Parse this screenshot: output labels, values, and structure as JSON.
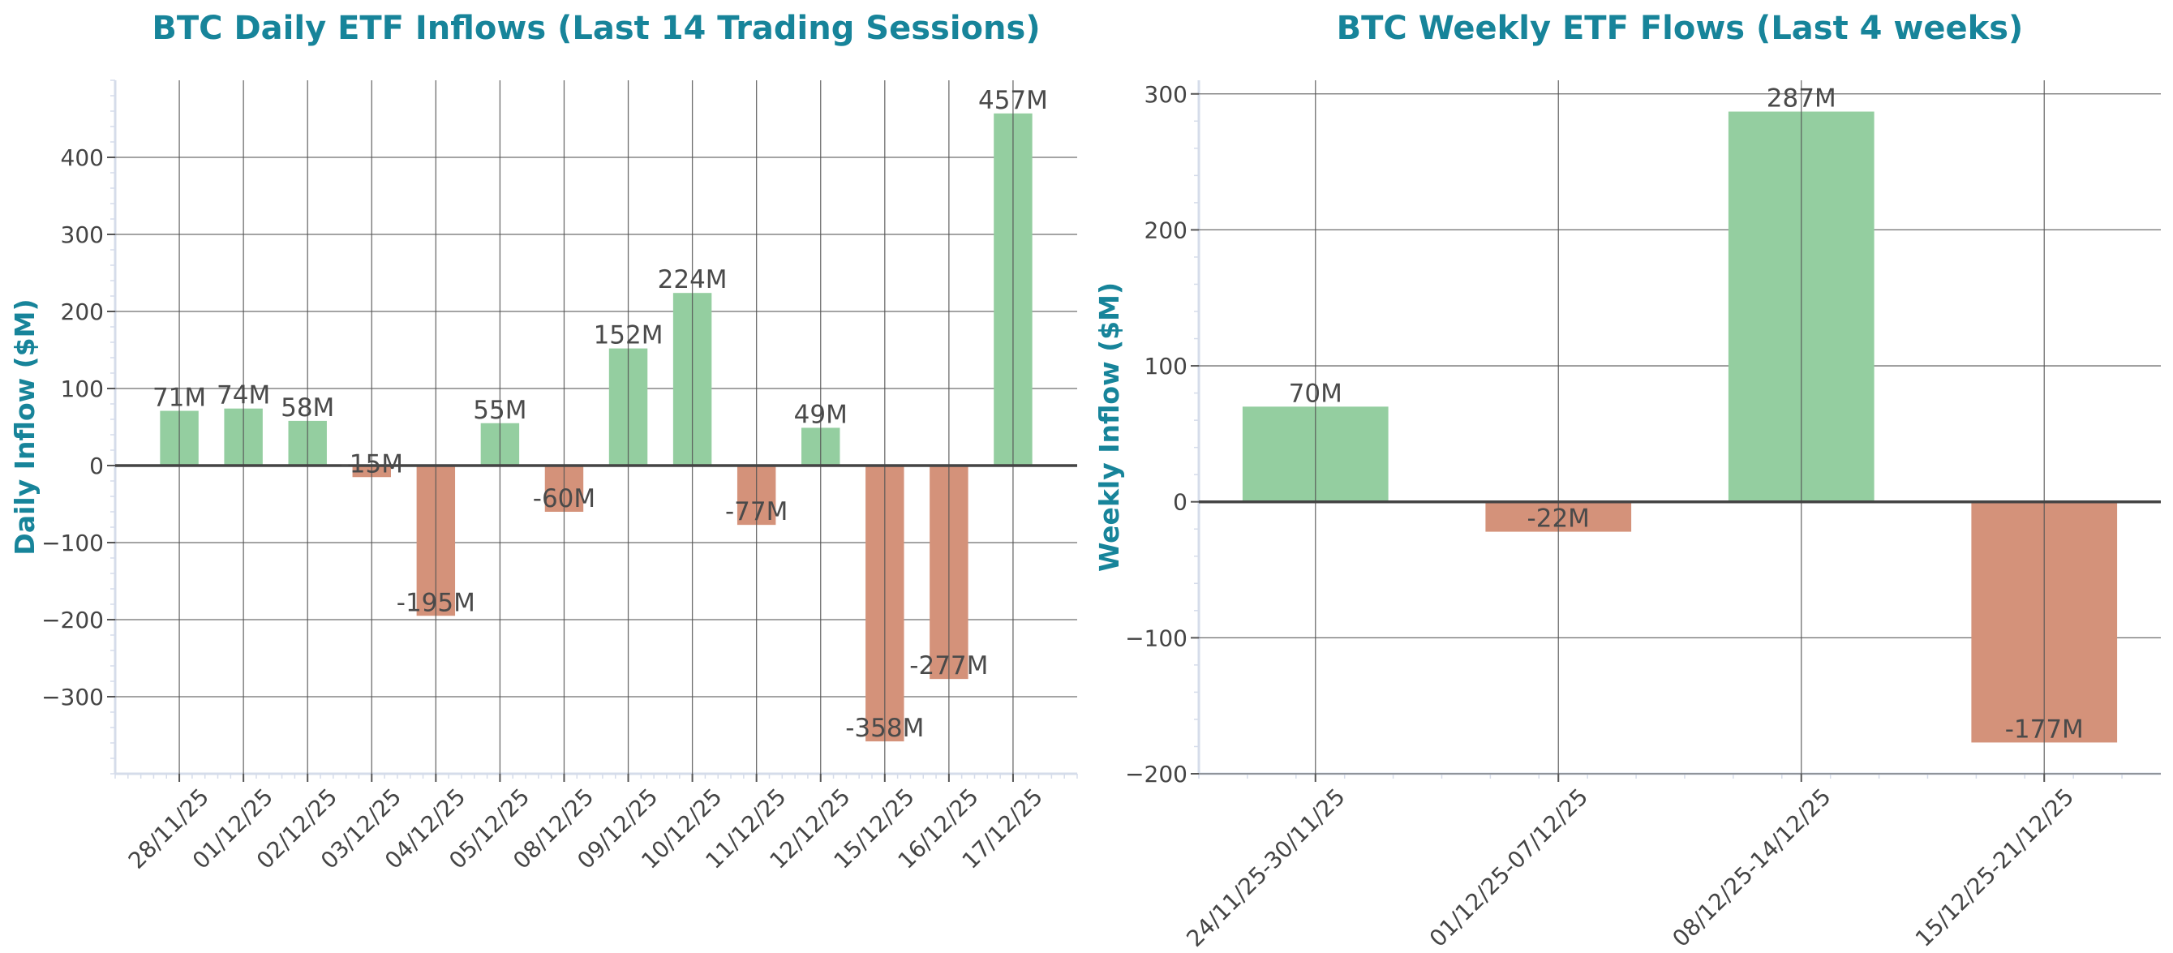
{
  "chart_data": [
    {
      "type": "bar",
      "title": "BTC Daily ETF Inflows (Last 14 Trading Sessions)",
      "xlabel": "",
      "ylabel": "Daily Inflow ($M)",
      "categories": [
        "28/11/25",
        "01/12/25",
        "02/12/25",
        "03/12/25",
        "04/12/25",
        "05/12/25",
        "08/12/25",
        "09/12/25",
        "10/12/25",
        "11/12/25",
        "12/12/25",
        "15/12/25",
        "16/12/25",
        "17/12/25"
      ],
      "values": [
        71,
        74,
        58,
        -15,
        -195,
        55,
        -60,
        152,
        224,
        -77,
        49,
        -358,
        -277,
        457
      ],
      "data_labels": [
        "71M",
        "74M",
        "58M",
        "-15M",
        "-195M",
        "55M",
        "-60M",
        "152M",
        "224M",
        "-77M",
        "49M",
        "-358M",
        "-277M",
        "457M"
      ],
      "yticks": [
        -300,
        -200,
        -100,
        0,
        100,
        200,
        300,
        400
      ],
      "ytick_labels": [
        "−300",
        "−200",
        "−100",
        "0",
        "100",
        "200",
        "300",
        "400"
      ],
      "ylim": [
        -400,
        500
      ],
      "grid": true,
      "colors": {
        "positive": "#94cea0",
        "negative": "#d4927a",
        "title": "#17849a"
      }
    },
    {
      "type": "bar",
      "title": "BTC Weekly ETF Flows (Last 4 weeks)",
      "xlabel": "",
      "ylabel": "Weekly Inflow ($M)",
      "categories": [
        "24/11/25-30/11/25",
        "01/12/25-07/12/25",
        "08/12/25-14/12/25",
        "15/12/25-21/12/25"
      ],
      "values": [
        70,
        -22,
        287,
        -177
      ],
      "data_labels": [
        "70M",
        "-22M",
        "287M",
        "-177M"
      ],
      "yticks": [
        -200,
        -100,
        0,
        100,
        200,
        300
      ],
      "ytick_labels": [
        "−200",
        "−100",
        "0",
        "100",
        "200",
        "300"
      ],
      "ylim": [
        -200,
        310
      ],
      "grid": true,
      "colors": {
        "positive": "#94cea0",
        "negative": "#d4927a",
        "title": "#17849a"
      }
    }
  ]
}
